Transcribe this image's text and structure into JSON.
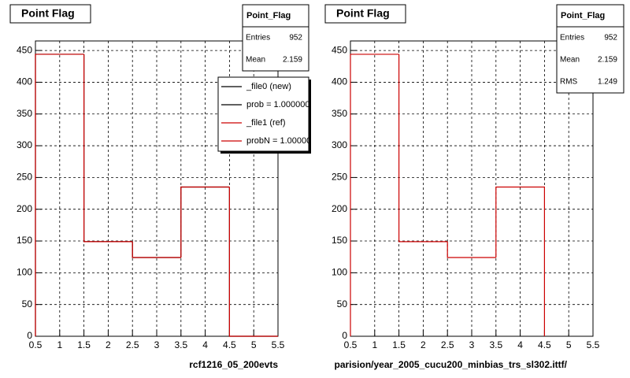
{
  "chart_data": [
    {
      "type": "histogram",
      "title": "Point Flag",
      "xlabel": "rcf1216_05_200evts",
      "bins": [
        0.5,
        1.5,
        2.5,
        3.5,
        4.5,
        5.5
      ],
      "series": [
        {
          "name": "_file0 (new)",
          "color": "#000000",
          "values": [
            444,
            149,
            124,
            235,
            0
          ]
        },
        {
          "name": "_file1 (ref)",
          "color": "#cc0000",
          "values": [
            444,
            149,
            124,
            235,
            0
          ]
        }
      ],
      "legend_extra": [
        "prob = 1.000000",
        "probN = 1.00000"
      ],
      "stats": {
        "title": "Point_Flag",
        "labels": [
          "Entries",
          "Mean"
        ],
        "values": [
          952,
          2.159
        ]
      },
      "xlim": [
        0.5,
        5.5
      ],
      "xticks": [
        0.5,
        1,
        1.5,
        2,
        2.5,
        3,
        3.5,
        4,
        4.5,
        5,
        5.5
      ],
      "ylim": [
        0,
        465
      ],
      "yticks": [
        0,
        50,
        100,
        150,
        200,
        250,
        300,
        350,
        400,
        450
      ],
      "grid": true
    },
    {
      "type": "histogram",
      "title": "Point Flag",
      "xlabel": "parision/year_2005_cucu200_minbias_trs_sl302.ittf/",
      "bins": [
        0.5,
        1.5,
        2.5,
        3.5,
        4.5
      ],
      "series": [
        {
          "name": "_file1 (ref)",
          "color": "#cc0000",
          "values": [
            444,
            149,
            124,
            235
          ]
        }
      ],
      "stats": {
        "title": "Point_Flag",
        "labels": [
          "Entries",
          "Mean",
          "RMS"
        ],
        "values": [
          952,
          2.159,
          1.249
        ]
      },
      "xlim": [
        0.5,
        5.5
      ],
      "xticks": [
        0.5,
        1,
        1.5,
        2,
        2.5,
        3,
        3.5,
        4,
        4.5,
        5,
        5.5
      ],
      "ylim": [
        0,
        465
      ],
      "yticks": [
        0,
        50,
        100,
        150,
        200,
        250,
        300,
        350,
        400,
        450
      ],
      "grid": true
    }
  ]
}
